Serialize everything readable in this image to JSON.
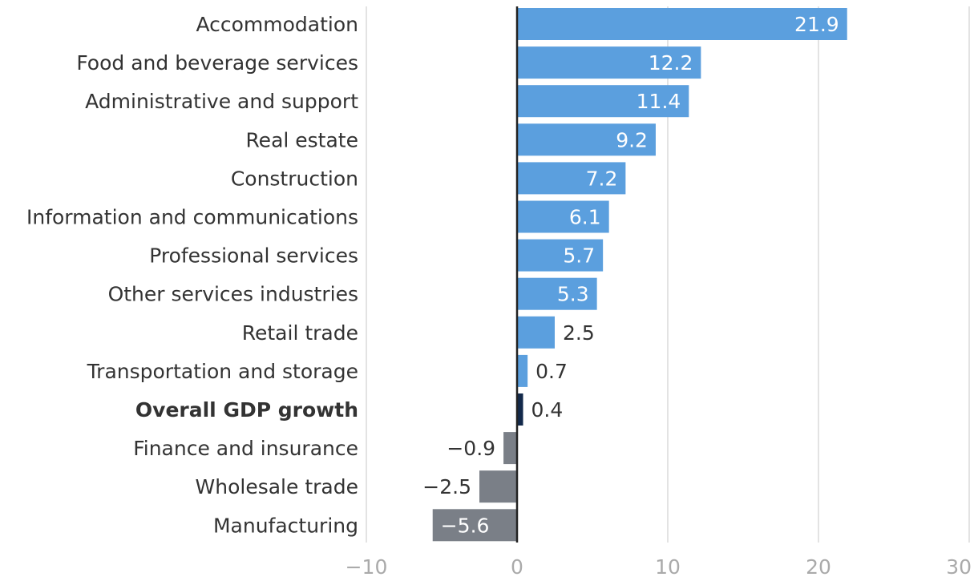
{
  "chart_data": {
    "type": "bar",
    "orientation": "horizontal",
    "title": "",
    "xlabel": "",
    "ylabel": "",
    "xlim": [
      -10,
      30
    ],
    "xticks": [
      -10,
      0,
      10,
      20,
      30
    ],
    "xtick_labels": [
      "−10",
      "0",
      "10",
      "20",
      "30"
    ],
    "grid": true,
    "categories": [
      "Accommodation",
      "Food and beverage services",
      "Administrative and support",
      "Real estate",
      "Construction",
      "Information and communications",
      "Professional services",
      "Other services industries",
      "Retail trade",
      "Transportation and storage",
      "Overall GDP growth",
      "Finance and insurance",
      "Wholesale trade",
      "Manufacturing"
    ],
    "values": [
      21.9,
      12.2,
      11.4,
      9.2,
      7.2,
      6.1,
      5.7,
      5.3,
      2.5,
      0.7,
      0.4,
      -0.9,
      -2.5,
      -5.6
    ],
    "value_labels": [
      "21.9",
      "12.2",
      "11.4",
      "9.2",
      "7.2",
      "6.1",
      "5.7",
      "5.3",
      "2.5",
      "0.7",
      "0.4",
      "−0.9",
      "−2.5",
      "−5.6"
    ],
    "highlight_category": "Overall GDP growth",
    "colors": {
      "positive": "#5b9fde",
      "negative": "#7a7f87",
      "highlight": "#13294b",
      "grid": "#e3e3e3",
      "zero_line": "#222222",
      "category_text": "#333333",
      "tick_text": "#aaaaaa",
      "label_inside": "#ffffff",
      "label_outside": "#333333"
    }
  }
}
